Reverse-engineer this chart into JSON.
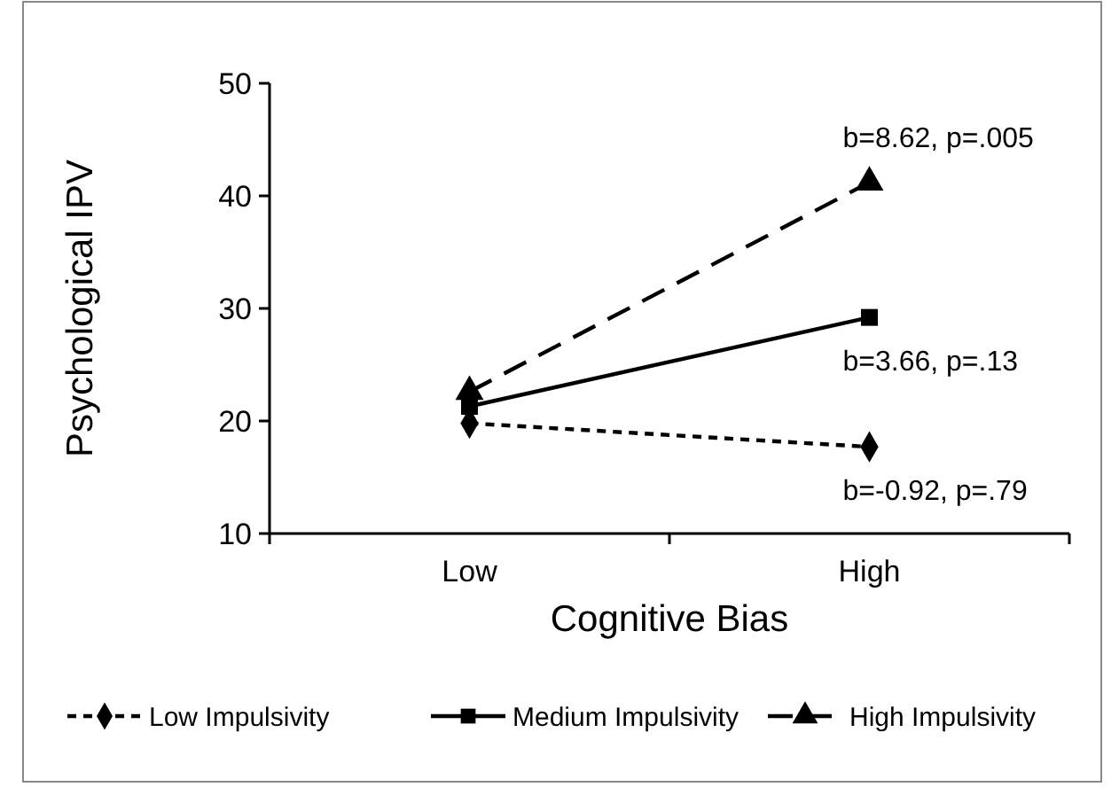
{
  "chart_data": {
    "type": "line",
    "xlabel": "Cognitive Bias",
    "ylabel": "Psychological IPV",
    "categories": [
      "Low",
      "High"
    ],
    "ylim": [
      10,
      50
    ],
    "yticks": [
      10,
      20,
      30,
      40,
      50
    ],
    "grid": false,
    "legend": "bottom",
    "series": [
      {
        "name": "Low Impulsivity",
        "color": "#000000",
        "values": [
          19.8,
          17.7
        ],
        "marker": "diamond",
        "line_style": "dotted"
      },
      {
        "name": "Medium Impulsivity",
        "color": "#000000",
        "values": [
          21.3,
          29.2
        ],
        "marker": "square",
        "line_style": "solid"
      },
      {
        "name": "High Impulsivity",
        "color": "#000000",
        "values": [
          22.6,
          41.2
        ],
        "marker": "triangle",
        "line_style": "dashed"
      }
    ],
    "annotations": [
      {
        "text": "b=8.62, p=.005",
        "x": "High",
        "y": 41.2
      },
      {
        "text": "b=3.66, p=.13",
        "x": "High",
        "y": 29.2
      },
      {
        "text": "b=-0.92, p=.79",
        "x": "High",
        "y": 17.7
      }
    ]
  }
}
